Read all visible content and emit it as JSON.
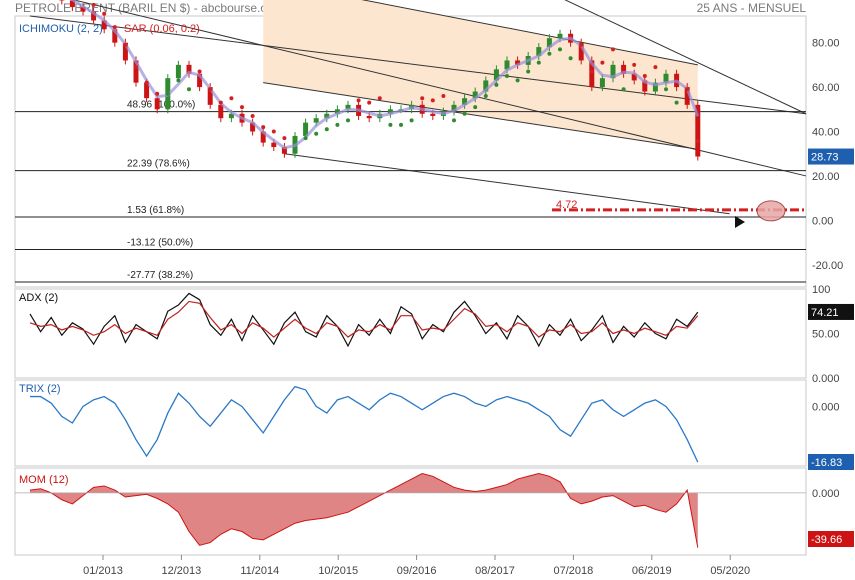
{
  "header": {
    "title": "PETROLE BRENT (BARIL EN $) - abcbourse.com",
    "period": "25 ANS - MENSUEL"
  },
  "colors": {
    "up": "#2e8b2e",
    "down": "#cc1414",
    "sar": "#d42020",
    "ichimoku": "#9a90d8",
    "channel_fill": "#fde6cf",
    "trix": "#2a78c8",
    "mom_fill": "#d97070",
    "adx_black": "#111111",
    "adx_red": "#c02020",
    "label_blue": "#1f5fb0"
  },
  "chart_data": [
    {
      "type": "candlestick",
      "name": "price",
      "overlays": [
        "ICHIMOKU (2, 2)",
        "SAR (0.06, 0.2)"
      ],
      "last_value": "28.73",
      "annotation": "4.72",
      "yticks": [
        "80.00",
        "60.00",
        "40.00",
        "20.00",
        "0.00",
        "-20.00"
      ],
      "ylim": [
        -30,
        92
      ],
      "fib_levels": [
        {
          "label": "48.96  (100.0%)",
          "value": 48.96
        },
        {
          "label": "22.39  (78.6%)",
          "value": 22.39
        },
        {
          "label": "1.53  (61.8%)",
          "value": 1.53
        },
        {
          "label": "-13.12  (50.0%)",
          "value": -13.12
        },
        {
          "label": "-27.77  (38.2%)",
          "value": -27.77
        }
      ],
      "closes": [
        110,
        108,
        103,
        99,
        96,
        94,
        90,
        86,
        80,
        72,
        62,
        55,
        50,
        64,
        70,
        66,
        60,
        52,
        46,
        48,
        44,
        40,
        35,
        33,
        30,
        38,
        44,
        46,
        48,
        50,
        52,
        47,
        46,
        48,
        50,
        50,
        52,
        48,
        47,
        49,
        52,
        55,
        58,
        63,
        68,
        72,
        70,
        74,
        78,
        82,
        84,
        80,
        72,
        60,
        64,
        70,
        66,
        63,
        58,
        62,
        66,
        60,
        52,
        28.73
      ]
    },
    {
      "type": "line",
      "name": "ADX (2)",
      "last_value": "74.21",
      "yticks": [
        "100",
        "50.00",
        "0.000"
      ],
      "ylim": [
        0,
        100
      ],
      "series": [
        {
          "name": "black",
          "values": [
            72,
            52,
            68,
            48,
            62,
            55,
            38,
            58,
            70,
            40,
            60,
            52,
            44,
            75,
            82,
            95,
            88,
            60,
            48,
            66,
            42,
            70,
            54,
            38,
            62,
            74,
            52,
            46,
            70,
            58,
            36,
            60,
            48,
            66,
            50,
            80,
            72,
            44,
            60,
            52,
            74,
            86,
            70,
            50,
            62,
            44,
            70,
            58,
            36,
            60,
            48,
            66,
            42,
            54,
            70,
            40,
            58,
            46,
            62,
            50,
            44,
            66,
            58,
            74
          ]
        },
        {
          "name": "red",
          "values": [
            62,
            58,
            60,
            54,
            58,
            54,
            48,
            52,
            60,
            50,
            56,
            52,
            48,
            66,
            74,
            86,
            84,
            68,
            54,
            60,
            50,
            62,
            56,
            46,
            56,
            66,
            56,
            50,
            62,
            58,
            46,
            54,
            52,
            60,
            54,
            70,
            70,
            54,
            56,
            54,
            66,
            78,
            72,
            58,
            60,
            52,
            62,
            58,
            46,
            54,
            52,
            60,
            50,
            52,
            62,
            50,
            54,
            50,
            56,
            52,
            48,
            58,
            56,
            70
          ]
        }
      ]
    },
    {
      "type": "line",
      "name": "TRIX (2)",
      "last_value": "-16.83",
      "yticks": [
        "0.000"
      ],
      "ylim": [
        -18,
        8
      ],
      "values": [
        3,
        3,
        1,
        -3,
        -5,
        0,
        2,
        3,
        1,
        -4,
        -10,
        -15,
        -10,
        -2,
        4,
        1,
        -3,
        -6,
        -2,
        2,
        0,
        -4,
        -8,
        -3,
        2,
        6,
        5,
        0,
        -2,
        2,
        3,
        1,
        -1,
        2,
        4,
        3,
        1,
        -1,
        1,
        3,
        4,
        3,
        1,
        0,
        2,
        3,
        2,
        1,
        -1,
        -3,
        -7,
        -9,
        -4,
        1,
        2,
        -1,
        -3,
        -1,
        1,
        2,
        0,
        -4,
        -10,
        -16.83
      ]
    },
    {
      "type": "area",
      "name": "MOM (12)",
      "last_value": "-39.66",
      "yticks": [
        "0.000"
      ],
      "ylim": [
        -45,
        18
      ],
      "values": [
        2,
        3,
        0,
        -5,
        -8,
        -2,
        4,
        5,
        2,
        -3,
        -2,
        -1,
        -4,
        -8,
        -14,
        -28,
        -38,
        -36,
        -30,
        -26,
        -28,
        -33,
        -34,
        -30,
        -26,
        -22,
        -20,
        -19,
        -18,
        -16,
        -14,
        -10,
        -6,
        -2,
        2,
        6,
        10,
        14,
        12,
        8,
        4,
        2,
        1,
        2,
        4,
        6,
        10,
        12,
        14,
        12,
        8,
        -4,
        -8,
        -6,
        -3,
        -2,
        -6,
        -10,
        -9,
        -12,
        -14,
        -8,
        2,
        -39.66
      ]
    }
  ],
  "x_axis": {
    "tick_labels": [
      "01/2013",
      "12/2013",
      "11/2014",
      "10/2015",
      "09/2016",
      "08/2017",
      "07/2018",
      "06/2019",
      "05/2020"
    ]
  }
}
